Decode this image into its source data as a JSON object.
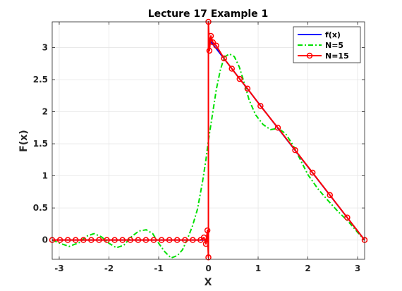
{
  "chart_data": {
    "type": "line",
    "title": "Lecture 17 Example 1",
    "xlabel": "X",
    "ylabel": "F(x)",
    "xlim": [
      -3.14159,
      3.14159
    ],
    "ylim": [
      -0.3,
      3.4
    ],
    "xticks": [
      -3,
      -2,
      -1,
      0,
      1,
      2,
      3
    ],
    "xtick_labels": [
      "-3",
      "-2",
      "-1",
      "0",
      "1",
      "2",
      "3"
    ],
    "yticks": [
      0,
      0.5,
      1,
      1.5,
      2,
      2.5,
      3
    ],
    "ytick_labels": [
      "0",
      "0.5",
      "1",
      "1.5",
      "2",
      "2.5",
      "3"
    ],
    "grid": true,
    "legend_position": "top-right",
    "series": [
      {
        "name": "f(x)",
        "color": "#0000ff",
        "style": "solid",
        "x": [
          -3.1416,
          0,
          0,
          3.1416
        ],
        "y": [
          0,
          0,
          3.1416,
          0
        ]
      },
      {
        "name": "N=5",
        "color": "#00e000",
        "style": "dashdot",
        "x": [
          -3.14,
          -2.95,
          -2.8,
          -2.6,
          -2.45,
          -2.3,
          -2.15,
          -2.0,
          -1.85,
          -1.7,
          -1.55,
          -1.4,
          -1.25,
          -1.12,
          -1.0,
          -0.88,
          -0.75,
          -0.62,
          -0.52,
          -0.42,
          -0.32,
          -0.22,
          -0.12,
          -0.05,
          0.0,
          0.08,
          0.16,
          0.24,
          0.32,
          0.42,
          0.52,
          0.62,
          0.72,
          0.82,
          0.95,
          1.1,
          1.25,
          1.4,
          1.55,
          1.7,
          1.85,
          2.0,
          2.2,
          2.4,
          2.6,
          2.8,
          3.0,
          3.14
        ],
        "y": [
          0.0,
          -0.06,
          -0.1,
          -0.04,
          0.06,
          0.1,
          0.05,
          -0.05,
          -0.12,
          -0.08,
          0.05,
          0.14,
          0.16,
          0.1,
          -0.05,
          -0.18,
          -0.28,
          -0.24,
          -0.15,
          0.02,
          0.22,
          0.48,
          0.9,
          1.25,
          1.55,
          1.95,
          2.35,
          2.65,
          2.85,
          2.9,
          2.86,
          2.7,
          2.45,
          2.18,
          1.95,
          1.8,
          1.72,
          1.74,
          1.66,
          1.48,
          1.25,
          1.02,
          0.8,
          0.62,
          0.45,
          0.3,
          0.12,
          0.0
        ]
      },
      {
        "name": "N=15",
        "color": "#ff0000",
        "style": "solid",
        "marker": "circle",
        "x": [
          -3.1416,
          -2.9845,
          -2.8274,
          -2.6704,
          -2.5133,
          -2.3562,
          -2.1991,
          -2.042,
          -1.885,
          -1.7279,
          -1.5708,
          -1.4137,
          -1.2566,
          -1.0996,
          -0.9425,
          -0.7854,
          -0.6283,
          -0.4712,
          -0.3142,
          -0.1571,
          -0.09,
          -0.05,
          -0.02,
          0.0,
          0.0,
          0.02,
          0.05,
          0.09,
          0.1571,
          0.3142,
          0.4712,
          0.6283,
          0.7854,
          1.0472,
          1.3963,
          1.7453,
          2.0944,
          2.4435,
          2.7925,
          3.1416
        ],
        "y": [
          0,
          0,
          0,
          0,
          0,
          0,
          0,
          0,
          0,
          0,
          0,
          0,
          0,
          0,
          0,
          0,
          0,
          0,
          0,
          0,
          0.04,
          -0.06,
          0.15,
          -0.27,
          3.4,
          2.95,
          3.18,
          3.08,
          3.03,
          2.83,
          2.67,
          2.51,
          2.36,
          2.09,
          1.75,
          1.4,
          1.05,
          0.7,
          0.35,
          0.0
        ]
      }
    ]
  }
}
